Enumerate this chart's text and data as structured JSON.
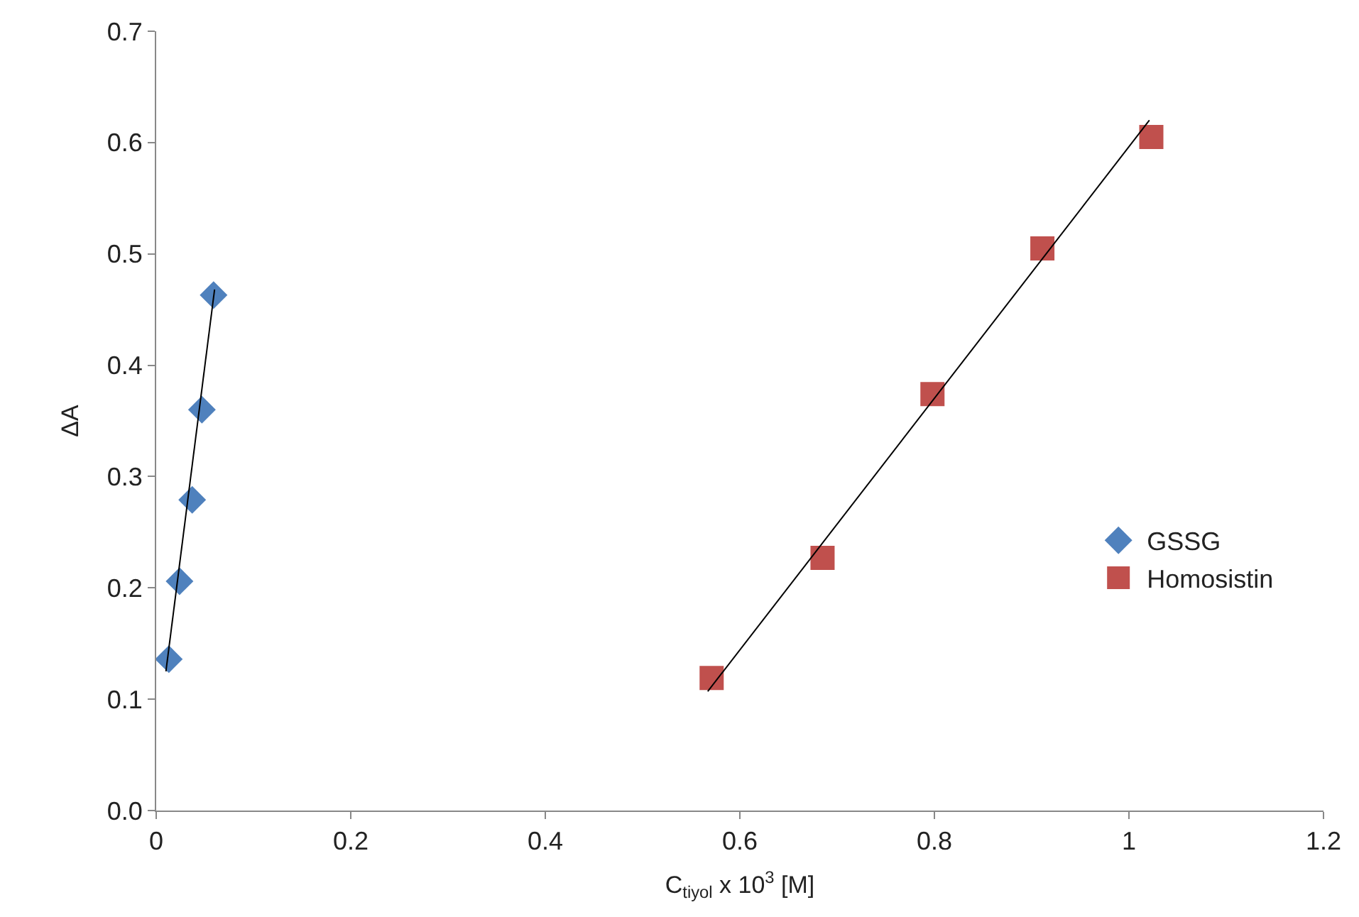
{
  "chart_data": {
    "type": "scatter",
    "xlabel": "C$_{tiyol}$ x 10$^{3}$ [M]",
    "ylabel": "ΔA",
    "xlim": [
      0,
      1.2
    ],
    "xticks": [
      0,
      0.2,
      0.4,
      0.6,
      0.8,
      1,
      1.2
    ],
    "ylim": [
      0,
      0.7
    ],
    "yticks": [
      {
        "value": 0,
        "label": "0.0"
      },
      0.1,
      0.2,
      0.3,
      0.4,
      0.5,
      0.6,
      0.7
    ],
    "legend": "right",
    "series": [
      {
        "name": "GSSG",
        "color": "#4f81bd",
        "marker": "diamond",
        "x": [
          0.013,
          0.024,
          0.037,
          0.047,
          0.059
        ],
        "values": [
          0.136,
          0.206,
          0.279,
          0.36,
          0.463
        ]
      },
      {
        "name": "Homosistin",
        "color": "#c0504d",
        "marker": "square",
        "x": [
          0.571,
          0.685,
          0.798,
          0.911,
          1.023
        ],
        "values": [
          0.119,
          0.227,
          0.374,
          0.505,
          0.605
        ]
      },
      {
        "type": "line",
        "color": "#000000",
        "marker": "none",
        "x": [
          0.01,
          0.06
        ],
        "values": [
          0.125,
          0.468
        ]
      },
      {
        "type": "line",
        "color": "#000000",
        "marker": "none",
        "x": [
          0.567,
          1.021
        ],
        "values": [
          0.107,
          0.62
        ]
      }
    ]
  }
}
